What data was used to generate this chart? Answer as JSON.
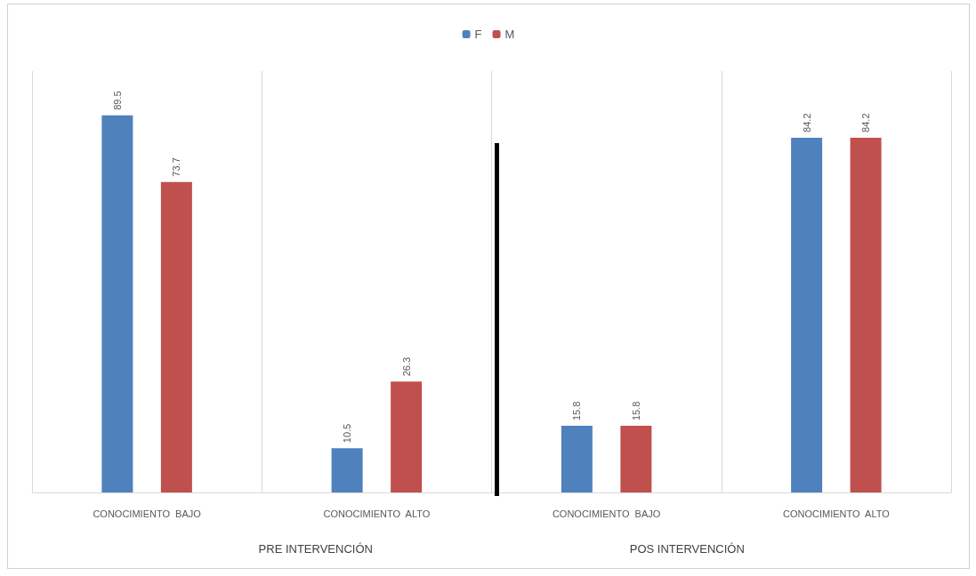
{
  "chart_data": {
    "type": "bar",
    "categories": [
      "CONOCIMIENTO  BAJO",
      "CONOCIMIENTO  ALTO",
      "CONOCIMIENTO  BAJO",
      "CONOCIMIENTO  ALTO"
    ],
    "series": [
      {
        "name": "F",
        "color": "#4f81bd",
        "values": [
          89.5,
          10.5,
          15.8,
          84.2
        ]
      },
      {
        "name": "M",
        "color": "#c0504d",
        "values": [
          73.7,
          26.3,
          15.8,
          84.2
        ]
      }
    ],
    "data_labels": true,
    "legend": "top",
    "grid": "x",
    "annotations": [
      "PRE INTERVENCIÓN",
      "POS INTERVENCIÓN"
    ]
  }
}
